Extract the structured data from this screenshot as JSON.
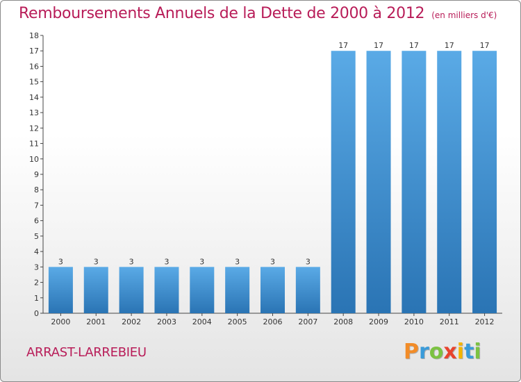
{
  "header": {
    "title": "Remboursements Annuels de la Dette de 2000 à 2012",
    "unit": "(en milliers d'€)"
  },
  "place": "ARRAST-LARREBIEU",
  "logo": {
    "letters": [
      "P",
      "r",
      "o",
      "x",
      "i",
      "t",
      "i"
    ],
    "colors": [
      "#f28c28",
      "#3a9bd9",
      "#7cc242",
      "#e8432d",
      "#f4b400",
      "#3a9bd9",
      "#7cc242"
    ]
  },
  "colors": {
    "bar_light": "#5aaae6",
    "bar_dark": "#2a74b4",
    "text": "#b81c58"
  },
  "chart_data": {
    "type": "bar",
    "categories": [
      "2000",
      "2001",
      "2002",
      "2003",
      "2004",
      "2005",
      "2006",
      "2007",
      "2008",
      "2009",
      "2010",
      "2011",
      "2012"
    ],
    "values": [
      3,
      3,
      3,
      3,
      3,
      3,
      3,
      3,
      17,
      17,
      17,
      17,
      17
    ],
    "data_labels": [
      "3",
      "3",
      "3",
      "3",
      "3",
      "3",
      "3",
      "3",
      "17",
      "17",
      "17",
      "17",
      "17"
    ],
    "ylim": [
      0,
      18
    ],
    "yticks": [
      0,
      1,
      2,
      3,
      4,
      5,
      6,
      7,
      8,
      9,
      10,
      11,
      12,
      13,
      14,
      15,
      16,
      17,
      18
    ],
    "grid": false,
    "legend": "none"
  }
}
